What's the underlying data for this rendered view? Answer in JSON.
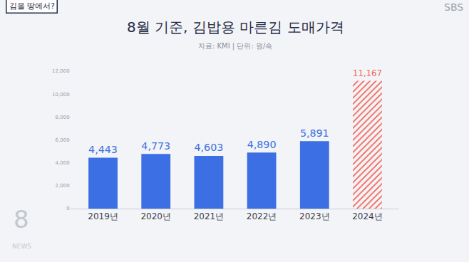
{
  "chart_data": {
    "type": "bar",
    "title": "8월 기준, 김밥용 마른김 도매가격",
    "subtitle": "자료: KMI | 단위: 원/속",
    "categories": [
      "2019년",
      "2020년",
      "2021년",
      "2022년",
      "2023년",
      "2024년"
    ],
    "values": [
      4443,
      4773,
      4603,
      4890,
      5891,
      11167
    ],
    "value_labels": [
      "4,443",
      "4,773",
      "4,603",
      "4,890",
      "5,891",
      "11,167"
    ],
    "colors": [
      "#3b6fe3",
      "#3b6fe3",
      "#3b6fe3",
      "#3b6fe3",
      "#3b6fe3",
      "#f0655a"
    ],
    "ylim": [
      0,
      12000
    ],
    "yticks": [
      0,
      {
        "value": 2000,
        "label": "2,000"
      },
      {
        "value": 4000,
        "label": "4,000"
      },
      {
        "value": 6000,
        "label": "6,000"
      },
      {
        "value": 8000,
        "label": "8,000"
      },
      {
        "value": 10000,
        "label": "10,000"
      },
      {
        "value": 12000,
        "label": "12,000"
      }
    ],
    "grid": false,
    "data_labels": true,
    "annotations": [
      "김을 땅에서?",
      "SBS",
      "8",
      "NEWS"
    ]
  }
}
